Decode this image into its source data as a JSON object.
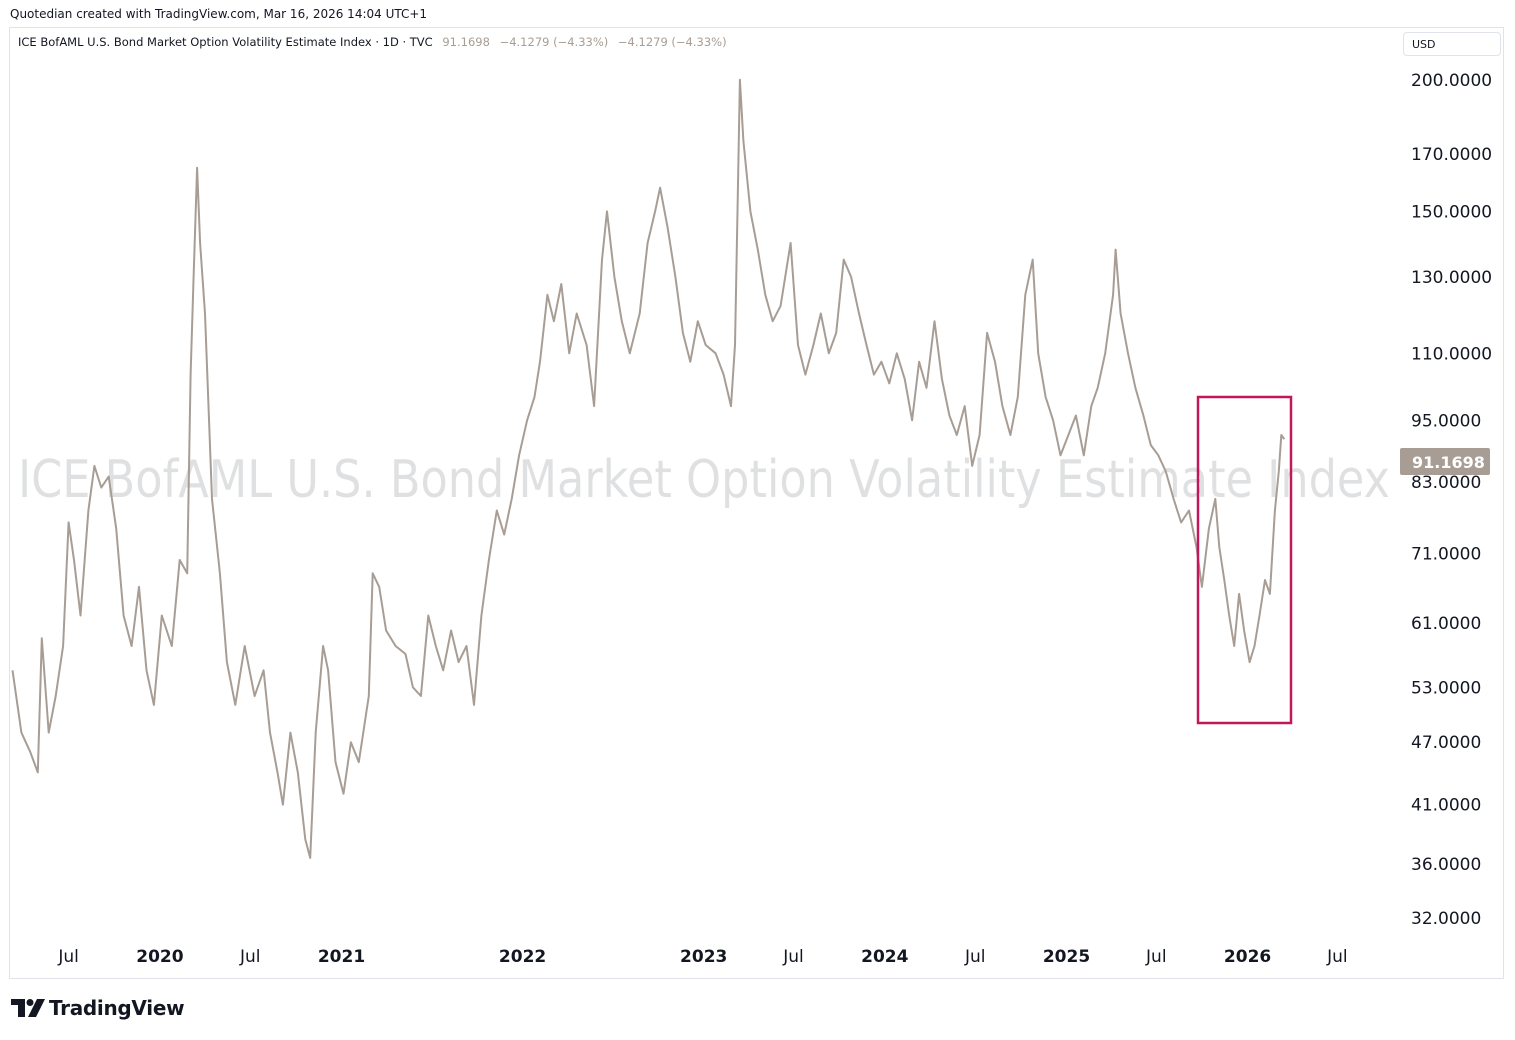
{
  "header": {
    "created_by": "Quotedian created with TradingView.com, Mar 16, 2026 14:04 UTC+1"
  },
  "legend": {
    "title": "ICE BofAML U.S. Bond Market Option Volatility Estimate Index · 1D · TVC",
    "last": "91.1698",
    "change1": "−4.1279 (−4.33%)",
    "change2": "−4.1279 (−4.33%)"
  },
  "currency": "USD",
  "watermark": "ICE BofAML U.S. Bond Market Option Volatility Estimate Index",
  "price_label": "91.1698",
  "brand": {
    "name": "TradingView",
    "logo_icon": "tradingview-logo-icon"
  },
  "colors": {
    "line": "#a89d94",
    "highlight_box": "#c2185b",
    "price_box": "#a89d94"
  },
  "chart_data": {
    "type": "line",
    "y_scale": "log",
    "ylim": [
      30.5,
      224
    ],
    "xlim": [
      "2019-03-05",
      "2026-10-15"
    ],
    "y_ticks": [
      "200.0000",
      "170.0000",
      "150.0000",
      "130.0000",
      "110.0000",
      "95.0000",
      "83.0000",
      "71.0000",
      "61.0000",
      "53.0000",
      "47.0000",
      "41.0000",
      "36.0000",
      "32.0000"
    ],
    "x_ticks": [
      {
        "label": "Jul",
        "date": "2019-07-01",
        "major": false
      },
      {
        "label": "2020",
        "date": "2020-01-01",
        "major": true
      },
      {
        "label": "Jul",
        "date": "2020-07-01",
        "major": false
      },
      {
        "label": "2021",
        "date": "2021-01-01",
        "major": true
      },
      {
        "label": "2022",
        "date": "2022-01-01",
        "major": true
      },
      {
        "label": "2023",
        "date": "2023-01-01",
        "major": true
      },
      {
        "label": "Jul",
        "date": "2023-07-01",
        "major": false
      },
      {
        "label": "2024",
        "date": "2024-01-01",
        "major": true
      },
      {
        "label": "Jul",
        "date": "2024-07-01",
        "major": false
      },
      {
        "label": "2025",
        "date": "2025-01-01",
        "major": true
      },
      {
        "label": "Jul",
        "date": "2025-07-01",
        "major": false
      },
      {
        "label": "2026",
        "date": "2026-01-01",
        "major": true
      },
      {
        "label": "Jul",
        "date": "2026-07-01",
        "major": false
      }
    ],
    "series": [
      {
        "points": [
          [
            "2019-03-10",
            55
          ],
          [
            "2019-03-28",
            48
          ],
          [
            "2019-04-15",
            46
          ],
          [
            "2019-04-30",
            44
          ],
          [
            "2019-05-08",
            59
          ],
          [
            "2019-05-22",
            48
          ],
          [
            "2019-06-05",
            52
          ],
          [
            "2019-06-20",
            58
          ],
          [
            "2019-07-01",
            76
          ],
          [
            "2019-07-12",
            70
          ],
          [
            "2019-07-25",
            62
          ],
          [
            "2019-08-10",
            78
          ],
          [
            "2019-08-22",
            86
          ],
          [
            "2019-09-05",
            82
          ],
          [
            "2019-09-20",
            84
          ],
          [
            "2019-10-05",
            75
          ],
          [
            "2019-10-20",
            62
          ],
          [
            "2019-11-05",
            58
          ],
          [
            "2019-11-20",
            66
          ],
          [
            "2019-12-05",
            55
          ],
          [
            "2019-12-20",
            51
          ],
          [
            "2020-01-05",
            62
          ],
          [
            "2020-01-25",
            58
          ],
          [
            "2020-02-10",
            70
          ],
          [
            "2020-02-25",
            68
          ],
          [
            "2020-03-03",
            105
          ],
          [
            "2020-03-09",
            130
          ],
          [
            "2020-03-16",
            165
          ],
          [
            "2020-03-22",
            140
          ],
          [
            "2020-04-01",
            120
          ],
          [
            "2020-04-15",
            80
          ],
          [
            "2020-05-01",
            68
          ],
          [
            "2020-05-15",
            56
          ],
          [
            "2020-06-01",
            51
          ],
          [
            "2020-06-20",
            58
          ],
          [
            "2020-07-10",
            52
          ],
          [
            "2020-07-28",
            55
          ],
          [
            "2020-08-10",
            48
          ],
          [
            "2020-08-25",
            44
          ],
          [
            "2020-09-05",
            41
          ],
          [
            "2020-09-20",
            48
          ],
          [
            "2020-10-05",
            44
          ],
          [
            "2020-10-20",
            38
          ],
          [
            "2020-10-30",
            36.5
          ],
          [
            "2020-11-10",
            48
          ],
          [
            "2020-11-25",
            58
          ],
          [
            "2020-12-05",
            55
          ],
          [
            "2020-12-20",
            45
          ],
          [
            "2021-01-05",
            42
          ],
          [
            "2021-01-20",
            47
          ],
          [
            "2021-02-05",
            45
          ],
          [
            "2021-02-25",
            52
          ],
          [
            "2021-03-05",
            68
          ],
          [
            "2021-03-18",
            66
          ],
          [
            "2021-04-01",
            60
          ],
          [
            "2021-04-20",
            58
          ],
          [
            "2021-05-10",
            57
          ],
          [
            "2021-05-25",
            53
          ],
          [
            "2021-06-10",
            52
          ],
          [
            "2021-06-25",
            62
          ],
          [
            "2021-07-10",
            58
          ],
          [
            "2021-07-25",
            55
          ],
          [
            "2021-08-10",
            60
          ],
          [
            "2021-08-25",
            56
          ],
          [
            "2021-09-10",
            58
          ],
          [
            "2021-09-25",
            51
          ],
          [
            "2021-10-10",
            62
          ],
          [
            "2021-10-25",
            70
          ],
          [
            "2021-11-10",
            78
          ],
          [
            "2021-11-25",
            74
          ],
          [
            "2021-12-10",
            80
          ],
          [
            "2021-12-25",
            88
          ],
          [
            "2022-01-10",
            95
          ],
          [
            "2022-01-25",
            100
          ],
          [
            "2022-02-05",
            108
          ],
          [
            "2022-02-20",
            125
          ],
          [
            "2022-03-05",
            118
          ],
          [
            "2022-03-20",
            128
          ],
          [
            "2022-04-05",
            110
          ],
          [
            "2022-04-20",
            120
          ],
          [
            "2022-05-10",
            112
          ],
          [
            "2022-05-25",
            98
          ],
          [
            "2022-06-10",
            135
          ],
          [
            "2022-06-20",
            150
          ],
          [
            "2022-07-05",
            130
          ],
          [
            "2022-07-20",
            118
          ],
          [
            "2022-08-05",
            110
          ],
          [
            "2022-08-25",
            120
          ],
          [
            "2022-09-10",
            140
          ],
          [
            "2022-09-25",
            150
          ],
          [
            "2022-10-05",
            158
          ],
          [
            "2022-10-20",
            145
          ],
          [
            "2022-11-05",
            130
          ],
          [
            "2022-11-20",
            115
          ],
          [
            "2022-12-05",
            108
          ],
          [
            "2022-12-20",
            118
          ],
          [
            "2023-01-05",
            112
          ],
          [
            "2023-01-25",
            110
          ],
          [
            "2023-02-10",
            105
          ],
          [
            "2023-02-25",
            98
          ],
          [
            "2023-03-05",
            112
          ],
          [
            "2023-03-10",
            150
          ],
          [
            "2023-03-15",
            200
          ],
          [
            "2023-03-22",
            175
          ],
          [
            "2023-04-05",
            150
          ],
          [
            "2023-04-20",
            138
          ],
          [
            "2023-05-05",
            125
          ],
          [
            "2023-05-20",
            118
          ],
          [
            "2023-06-05",
            122
          ],
          [
            "2023-06-25",
            140
          ],
          [
            "2023-07-10",
            112
          ],
          [
            "2023-07-25",
            105
          ],
          [
            "2023-08-10",
            112
          ],
          [
            "2023-08-25",
            120
          ],
          [
            "2023-09-10",
            110
          ],
          [
            "2023-09-25",
            115
          ],
          [
            "2023-10-10",
            135
          ],
          [
            "2023-10-25",
            130
          ],
          [
            "2023-11-10",
            120
          ],
          [
            "2023-11-25",
            112
          ],
          [
            "2023-12-10",
            105
          ],
          [
            "2023-12-25",
            108
          ],
          [
            "2024-01-10",
            103
          ],
          [
            "2024-01-25",
            110
          ],
          [
            "2024-02-10",
            104
          ],
          [
            "2024-02-25",
            95
          ],
          [
            "2024-03-10",
            108
          ],
          [
            "2024-03-25",
            102
          ],
          [
            "2024-04-10",
            118
          ],
          [
            "2024-04-25",
            104
          ],
          [
            "2024-05-10",
            96
          ],
          [
            "2024-05-25",
            92
          ],
          [
            "2024-06-10",
            98
          ],
          [
            "2024-06-25",
            86
          ],
          [
            "2024-07-10",
            92
          ],
          [
            "2024-07-25",
            115
          ],
          [
            "2024-08-10",
            108
          ],
          [
            "2024-08-25",
            98
          ],
          [
            "2024-09-10",
            92
          ],
          [
            "2024-09-25",
            100
          ],
          [
            "2024-10-10",
            125
          ],
          [
            "2024-10-25",
            135
          ],
          [
            "2024-11-05",
            110
          ],
          [
            "2024-11-20",
            100
          ],
          [
            "2024-12-05",
            95
          ],
          [
            "2024-12-20",
            88
          ],
          [
            "2025-01-05",
            92
          ],
          [
            "2025-01-20",
            96
          ],
          [
            "2025-02-05",
            88
          ],
          [
            "2025-02-20",
            98
          ],
          [
            "2025-03-05",
            102
          ],
          [
            "2025-03-20",
            110
          ],
          [
            "2025-04-05",
            125
          ],
          [
            "2025-04-10",
            138
          ],
          [
            "2025-04-20",
            120
          ],
          [
            "2025-05-05",
            110
          ],
          [
            "2025-05-20",
            102
          ],
          [
            "2025-06-05",
            96
          ],
          [
            "2025-06-20",
            90
          ],
          [
            "2025-07-05",
            88
          ],
          [
            "2025-07-20",
            85
          ],
          [
            "2025-08-05",
            80
          ],
          [
            "2025-08-20",
            76
          ],
          [
            "2025-09-05",
            78
          ],
          [
            "2025-09-20",
            72
          ],
          [
            "2025-10-01",
            66
          ],
          [
            "2025-10-15",
            75
          ],
          [
            "2025-10-28",
            80
          ],
          [
            "2025-11-05",
            72
          ],
          [
            "2025-11-15",
            67
          ],
          [
            "2025-11-25",
            62
          ],
          [
            "2025-12-05",
            58
          ],
          [
            "2025-12-15",
            65
          ],
          [
            "2025-12-25",
            60
          ],
          [
            "2026-01-05",
            56
          ],
          [
            "2026-01-15",
            58
          ],
          [
            "2026-01-25",
            62
          ],
          [
            "2026-02-05",
            67
          ],
          [
            "2026-02-15",
            65
          ],
          [
            "2026-02-25",
            78
          ],
          [
            "2026-03-05",
            85
          ],
          [
            "2026-03-10",
            92
          ],
          [
            "2026-03-16",
            91.17
          ]
        ]
      }
    ]
  }
}
